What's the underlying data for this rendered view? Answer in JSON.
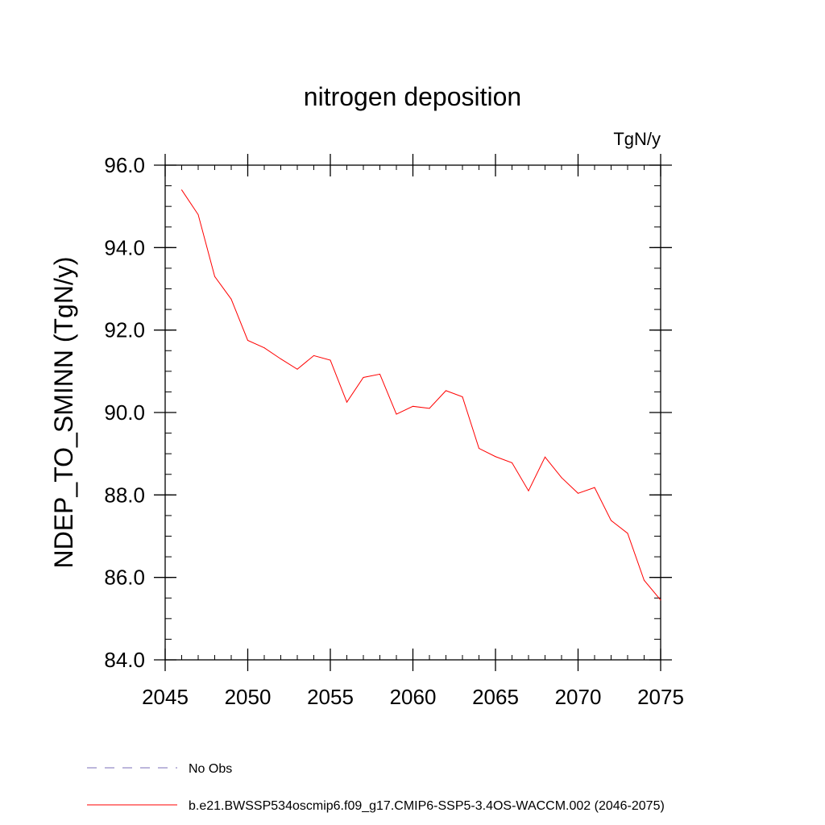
{
  "chart_data": {
    "type": "line",
    "title": "nitrogen deposition",
    "units_label": "TgN/y",
    "ylabel": "NDEP_TO_SMINN  (TgN/y)",
    "xlabel": "",
    "xlim": [
      2045,
      2075
    ],
    "ylim": [
      84.0,
      96.0
    ],
    "x_ticks": [
      "2045",
      "2050",
      "2055",
      "2060",
      "2065",
      "2070",
      "2075"
    ],
    "y_ticks": [
      "84.0",
      "86.0",
      "88.0",
      "90.0",
      "92.0",
      "94.0",
      "96.0"
    ],
    "x_minor_step": 1,
    "y_minor_step": 0.5,
    "grid": false,
    "legend_position": "bottom-left",
    "series": [
      {
        "name": "No Obs",
        "color": "#7b6fb8",
        "dash": "dashed",
        "x": [],
        "values": []
      },
      {
        "name": "b.e21.BWSSP534oscmip6.f09_g17.CMIP6-SSP5-3.4OS-WACCM.002 (2046-2075)",
        "color": "#ff0000",
        "dash": "solid",
        "x": [
          2046,
          2047,
          2048,
          2049,
          2050,
          2051,
          2052,
          2053,
          2054,
          2055,
          2056,
          2057,
          2058,
          2059,
          2060,
          2061,
          2062,
          2063,
          2064,
          2065,
          2066,
          2067,
          2068,
          2069,
          2070,
          2071,
          2072,
          2073,
          2074,
          2075
        ],
        "values": [
          95.4,
          94.8,
          93.3,
          92.75,
          91.75,
          91.57,
          91.3,
          91.05,
          91.38,
          91.27,
          90.25,
          90.85,
          90.93,
          89.96,
          90.15,
          90.1,
          90.53,
          90.38,
          89.13,
          88.93,
          88.78,
          88.1,
          88.92,
          88.42,
          88.04,
          88.18,
          87.38,
          87.07,
          85.93,
          85.45
        ]
      }
    ]
  }
}
